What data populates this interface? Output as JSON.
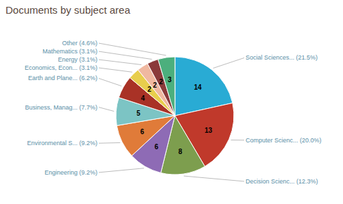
{
  "chart_data": {
    "type": "pie",
    "title": "Documents by subject area",
    "categories": [
      "Social Sciences... (21.5%)",
      "Computer Scienc... (20.0%)",
      "Decision Scienc... (12.3%)",
      "Engineering (9.2%)",
      "Environmental S... (9.2%)",
      "Business, Manag... (7.7%)",
      "Earth and Plane... (6.2%)",
      "Economics, Econ... (3.1%)",
      "Energy (3.1%)",
      "Mathematics (3.1%)",
      "Other (4.6%)"
    ],
    "values": [
      14,
      13,
      8,
      6,
      6,
      5,
      4,
      2,
      2,
      2,
      3
    ],
    "colors": [
      "#29ABD4",
      "#C0392B",
      "#7D9E4E",
      "#8E6BB5",
      "#E07B39",
      "#7CC4C4",
      "#A93226",
      "#E8CE4D",
      "#F0B8A0",
      "#8B3A3A",
      "#4CAF7D"
    ],
    "data_labels": true
  }
}
